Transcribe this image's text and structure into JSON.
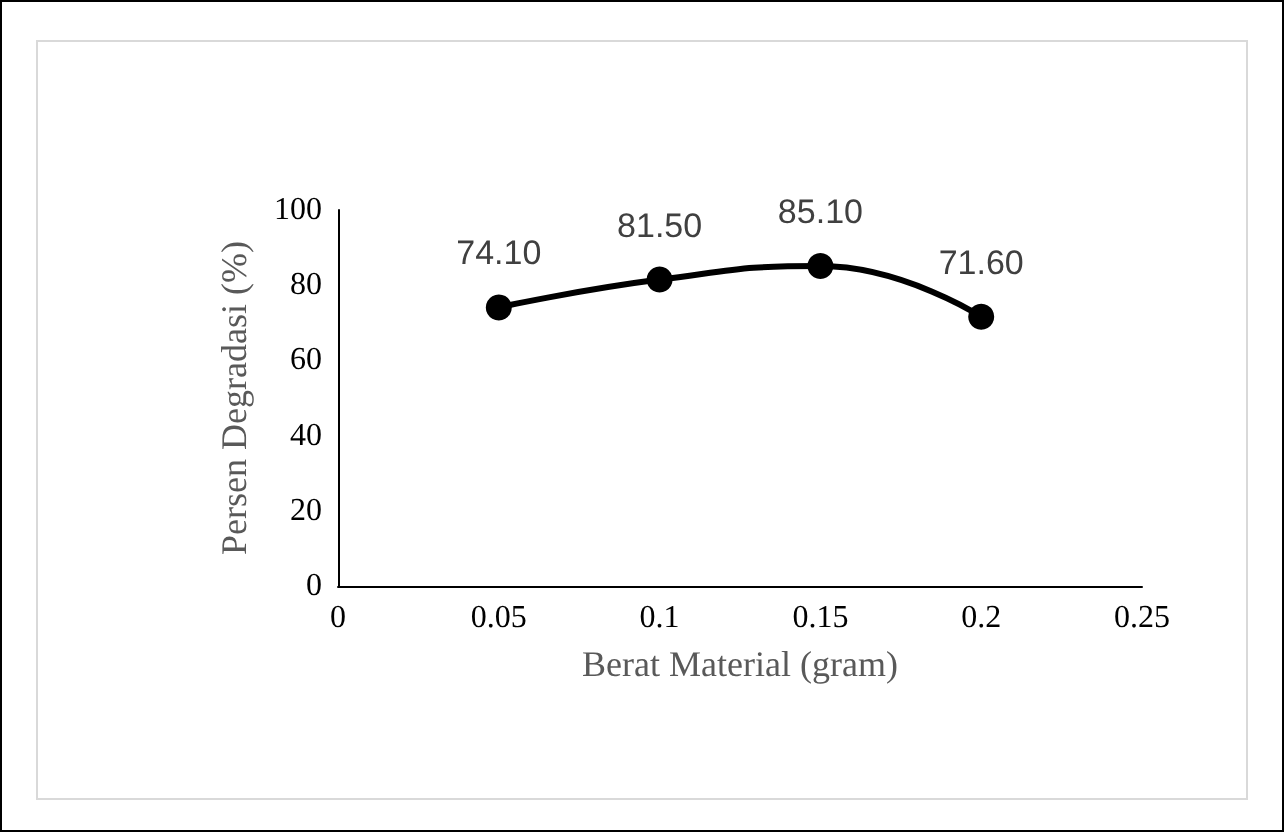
{
  "chart_data": {
    "type": "line",
    "xlabel": "Berat Material (gram)",
    "ylabel": "Persen Degradasi (%)",
    "x": [
      0.05,
      0.1,
      0.15,
      0.2
    ],
    "series": [
      {
        "color": "#000000",
        "values": [
          74.1,
          81.5,
          85.1,
          71.6
        ],
        "value_labels": [
          "74.10",
          "81.50",
          "85.10",
          "71.60"
        ]
      }
    ],
    "xlim": [
      0,
      0.25
    ],
    "xticks": [
      0,
      0.05,
      0.1,
      0.15,
      0.2,
      0.25
    ],
    "ylim": [
      0,
      100
    ],
    "yticks": [
      0,
      20,
      40,
      60,
      80,
      100
    ],
    "grid": false,
    "marker": "circle",
    "line_style": "solid"
  }
}
